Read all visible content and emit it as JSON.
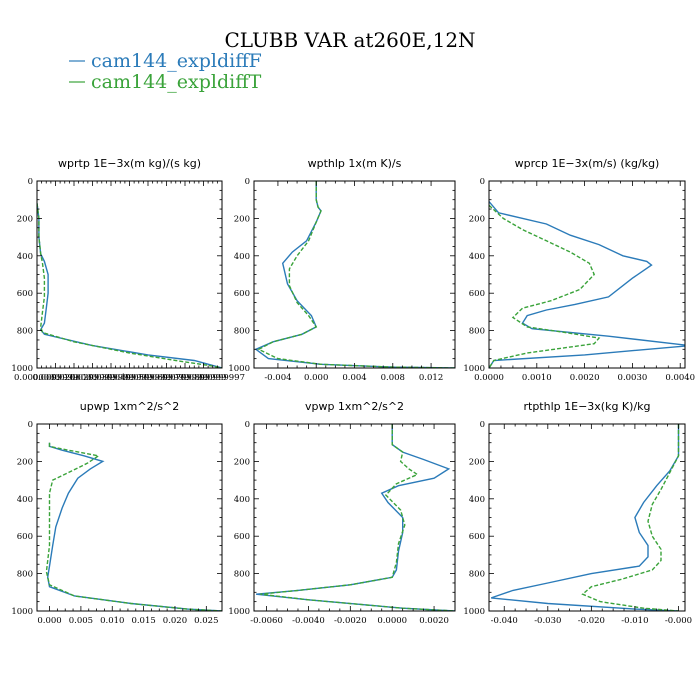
{
  "title": "CLUBB VAR at260E,12N",
  "colors": {
    "F": "#2b7bb9",
    "T": "#3aa33a"
  },
  "legend": [
    {
      "label": "cam144_expldiffF",
      "color": "#2b7bb9",
      "dash": "solid"
    },
    {
      "label": "cam144_expldiffT",
      "color": "#3aa33a",
      "dash": "dashed"
    }
  ],
  "chart_data": [
    {
      "type": "line",
      "title": "wprtp  1E−3x(m kg)/(s kg)",
      "xlim": [
        0,
        0.1
      ],
      "ylim": [
        1000,
        0
      ],
      "xticks": [
        0,
        0.01,
        0.02,
        0.03,
        0.04,
        0.05,
        0.06,
        0.07,
        0.08,
        0.09,
        0.1
      ],
      "xticklabels": [
        "0.0000000",
        "0.0099999",
        "0.0200000",
        "0.0299999",
        "0.0399999",
        "0.0499999",
        "0.0599999",
        "0.0699999",
        "0.0799999",
        "0.0899999",
        "0.0999997"
      ],
      "yticks": [
        0,
        200,
        400,
        600,
        800,
        1000
      ],
      "series": [
        {
          "name": "cam144_expldiffF",
          "x": [
            0.0,
            0.001,
            0.001,
            0.002,
            0.004,
            0.006,
            0.006,
            0.005,
            0.004,
            0.002,
            0.004,
            0.03,
            0.06,
            0.085,
            0.1
          ],
          "y": [
            120,
            200,
            300,
            390,
            430,
            500,
            600,
            680,
            760,
            795,
            820,
            880,
            930,
            960,
            1000
          ]
        },
        {
          "name": "cam144_expldiffT",
          "x": [
            0.0,
            0.001,
            0.001,
            0.002,
            0.003,
            0.004,
            0.004,
            0.003,
            0.002,
            0.003,
            0.02,
            0.05,
            0.075,
            0.095,
            0.1
          ],
          "y": [
            120,
            200,
            300,
            390,
            440,
            520,
            620,
            700,
            780,
            810,
            860,
            920,
            960,
            990,
            1000
          ]
        }
      ]
    },
    {
      "type": "line",
      "title": "wpthlp  1x(m K)/s",
      "xlim": [
        -0.0065,
        0.0145
      ],
      "ylim": [
        1000,
        0
      ],
      "xticks": [
        -0.004,
        0.0,
        0.004,
        0.008,
        0.012
      ],
      "xticklabels": [
        "-0.004",
        "0.000",
        "0.004",
        "0.008",
        "0.012"
      ],
      "yticks": [
        0,
        200,
        400,
        600,
        800,
        1000
      ],
      "series": [
        {
          "name": "cam144_expldiffF",
          "x": [
            0.0,
            0.0,
            0.0002,
            0.0005,
            0.0,
            -0.001,
            -0.0025,
            -0.0035,
            -0.003,
            -0.002,
            -0.0005,
            0.0,
            -0.0015,
            -0.0045,
            -0.0063,
            -0.005,
            0.0005,
            0.008,
            0.0145
          ],
          "y": [
            0,
            100,
            140,
            160,
            220,
            320,
            380,
            440,
            550,
            640,
            720,
            780,
            820,
            860,
            900,
            950,
            980,
            995,
            1000
          ]
        },
        {
          "name": "cam144_expldiffT",
          "x": [
            0.0,
            0.0,
            0.0002,
            0.0005,
            0.0,
            -0.0008,
            -0.002,
            -0.0028,
            -0.0028,
            -0.002,
            -0.0008,
            0.0,
            -0.0015,
            -0.0045,
            -0.006,
            -0.004,
            0.0005,
            0.008,
            0.0145
          ],
          "y": [
            0,
            100,
            140,
            160,
            220,
            320,
            400,
            470,
            560,
            650,
            720,
            780,
            820,
            860,
            900,
            950,
            980,
            995,
            1000
          ]
        }
      ]
    },
    {
      "type": "line",
      "title": "wprcp  1E−3x(m/s) (kg/kg)",
      "xlim": [
        0,
        0.0041
      ],
      "ylim": [
        1000,
        0
      ],
      "xticks": [
        0,
        0.001,
        0.002,
        0.003,
        0.004
      ],
      "xticklabels": [
        "0.0000",
        "0.0010",
        "0.0020",
        "0.0030",
        "0.0040"
      ],
      "yticks": [
        0,
        200,
        400,
        600,
        800,
        1000
      ],
      "series": [
        {
          "name": "cam144_expldiffF",
          "x": [
            0.0,
            0.0002,
            0.0012,
            0.0017,
            0.0023,
            0.0028,
            0.0033,
            0.0034,
            0.003,
            0.0025,
            0.0018,
            0.0012,
            0.0008,
            0.0007,
            0.0009,
            0.0025,
            0.0042,
            0.002,
            0.0001,
            0.0
          ],
          "y": [
            110,
            170,
            230,
            290,
            340,
            400,
            430,
            450,
            520,
            620,
            660,
            690,
            720,
            760,
            790,
            830,
            880,
            930,
            960,
            1000
          ]
        },
        {
          "name": "cam144_expldiffT",
          "x": [
            0.0,
            0.0003,
            0.0007,
            0.0012,
            0.0017,
            0.0021,
            0.0022,
            0.0019,
            0.0013,
            0.0007,
            0.0005,
            0.0008,
            0.0016,
            0.0023,
            0.0022,
            0.0008,
            0.0001,
            0.0
          ],
          "y": [
            130,
            200,
            260,
            320,
            380,
            440,
            500,
            580,
            640,
            680,
            730,
            780,
            810,
            840,
            870,
            920,
            960,
            1000
          ]
        }
      ]
    },
    {
      "type": "line",
      "title": "upwp  1xm^2/s^2",
      "xlim": [
        -0.002,
        0.0275
      ],
      "ylim": [
        1000,
        0
      ],
      "xticks": [
        0,
        0.005,
        0.01,
        0.015,
        0.02,
        0.025
      ],
      "xticklabels": [
        "0.000",
        "0.005",
        "0.010",
        "0.015",
        "0.020",
        "0.025"
      ],
      "yticks": [
        0,
        200,
        400,
        600,
        800,
        1000
      ],
      "series": [
        {
          "name": "cam144_expldiffF",
          "x": [
            0.0,
            0.0,
            0.002,
            0.0055,
            0.0085,
            0.0065,
            0.0045,
            0.003,
            0.002,
            0.001,
            0.0005,
            0.0,
            -0.0003,
            0.0,
            0.004,
            0.013,
            0.022,
            0.0275
          ],
          "y": [
            100,
            120,
            140,
            170,
            200,
            240,
            290,
            370,
            450,
            550,
            650,
            760,
            820,
            870,
            920,
            960,
            990,
            1000
          ]
        },
        {
          "name": "cam144_expldiffT",
          "x": [
            0.0,
            0.0,
            0.003,
            0.0078,
            0.006,
            0.003,
            0.0005,
            0.0,
            0.0,
            0.0,
            -0.0005,
            0.0,
            0.004,
            0.013,
            0.022,
            0.0275
          ],
          "y": [
            100,
            120,
            140,
            170,
            210,
            260,
            300,
            370,
            500,
            650,
            790,
            860,
            920,
            960,
            990,
            1000
          ]
        }
      ]
    },
    {
      "type": "line",
      "title": "vpwp  1xm^2/s^2",
      "xlim": [
        -0.0066,
        0.003
      ],
      "ylim": [
        1000,
        0
      ],
      "xticks": [
        -0.006,
        -0.004,
        -0.002,
        0.0,
        0.002
      ],
      "xticklabels": [
        "-0.0060",
        "-0.0040",
        "-0.0020",
        "0.0000",
        "0.0020"
      ],
      "yticks": [
        0,
        200,
        400,
        600,
        800,
        1000
      ],
      "series": [
        {
          "name": "cam144_expldiffF",
          "x": [
            0.0,
            0.0,
            0.0005,
            0.0015,
            0.0027,
            0.002,
            0.0003,
            -0.0005,
            -0.0002,
            0.0005,
            0.0005,
            0.0003,
            0.0002,
            0.0,
            -0.002,
            -0.0045,
            -0.0065,
            -0.004,
            0.0005,
            0.003
          ],
          "y": [
            0,
            110,
            150,
            190,
            240,
            290,
            330,
            370,
            420,
            500,
            580,
            680,
            780,
            820,
            860,
            890,
            910,
            940,
            985,
            1000
          ]
        },
        {
          "name": "cam144_expldiffT",
          "x": [
            0.0,
            0.0,
            0.0005,
            0.0004,
            0.0008,
            0.0012,
            0.0002,
            -0.0003,
            0.0004,
            0.0006,
            0.0003,
            0.0002,
            0.0,
            -0.002,
            -0.0045,
            -0.0063,
            -0.004,
            0.0005,
            0.003
          ],
          "y": [
            0,
            110,
            150,
            200,
            240,
            270,
            320,
            380,
            460,
            540,
            640,
            740,
            820,
            860,
            890,
            910,
            940,
            985,
            1000
          ]
        }
      ]
    },
    {
      "type": "line",
      "title": "rtpthlp  1E−3x(kg K)/kg",
      "xlim": [
        -0.0435,
        0.0015
      ],
      "ylim": [
        1000,
        0
      ],
      "xticks": [
        -0.04,
        -0.03,
        -0.02,
        -0.01,
        0.0
      ],
      "xticklabels": [
        "-0.040",
        "-0.030",
        "-0.020",
        "-0.010",
        "-0.000"
      ],
      "yticks": [
        0,
        200,
        400,
        600,
        800,
        1000
      ],
      "series": [
        {
          "name": "cam144_expldiffF",
          "x": [
            0.0,
            0.0,
            -0.002,
            -0.005,
            -0.008,
            -0.01,
            -0.009,
            -0.007,
            -0.007,
            -0.009,
            -0.02,
            -0.03,
            -0.038,
            -0.043,
            -0.03,
            -0.01,
            0.0
          ],
          "y": [
            0,
            170,
            250,
            330,
            420,
            500,
            580,
            650,
            710,
            760,
            800,
            850,
            890,
            930,
            960,
            990,
            1000
          ]
        },
        {
          "name": "cam144_expldiffT",
          "x": [
            0.0,
            0.0,
            -0.002,
            -0.004,
            -0.006,
            -0.007,
            -0.006,
            -0.004,
            -0.004,
            -0.006,
            -0.013,
            -0.02,
            -0.022,
            -0.018,
            -0.008,
            0.0
          ],
          "y": [
            0,
            170,
            260,
            350,
            430,
            520,
            600,
            670,
            730,
            780,
            830,
            870,
            910,
            950,
            985,
            1000
          ]
        }
      ]
    }
  ]
}
